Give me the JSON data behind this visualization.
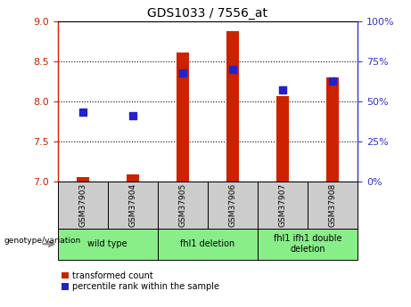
{
  "title": "GDS1033 / 7556_at",
  "samples": [
    "GSM37903",
    "GSM37904",
    "GSM37905",
    "GSM37906",
    "GSM37907",
    "GSM37908"
  ],
  "transformed_counts": [
    7.05,
    7.08,
    8.61,
    8.88,
    8.07,
    8.3
  ],
  "percentile_ranks": [
    43,
    41,
    68,
    70,
    57,
    63
  ],
  "ylim_left": [
    7,
    9
  ],
  "ylim_right": [
    0,
    100
  ],
  "yticks_left": [
    7,
    7.5,
    8,
    8.5,
    9
  ],
  "yticks_right": [
    0,
    25,
    50,
    75,
    100
  ],
  "bar_color": "#cc2200",
  "dot_color": "#2222cc",
  "groups": [
    {
      "label": "wild type",
      "start": 0,
      "end": 2
    },
    {
      "label": "fhl1 deletion",
      "start": 2,
      "end": 4
    },
    {
      "label": "fhl1 ifh1 double\ndeletion",
      "start": 4,
      "end": 6
    }
  ],
  "group_color": "#88ee88",
  "sample_box_color": "#cccccc",
  "legend_red_label": "transformed count",
  "legend_blue_label": "percentile rank within the sample",
  "genotype_label": "genotype/variation",
  "bg_color": "#ffffff",
  "dot_size": 40,
  "bar_width": 0.25
}
